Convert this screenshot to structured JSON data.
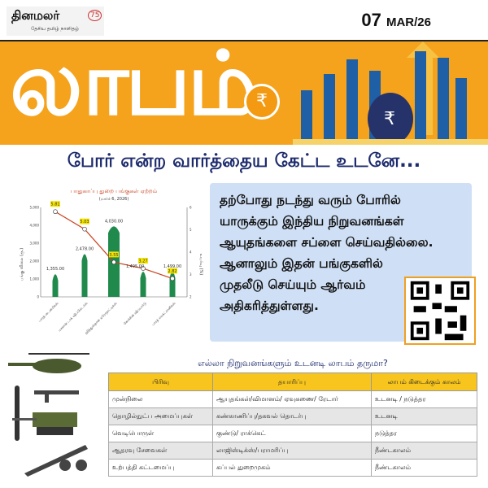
{
  "header": {
    "logo_text": "தினமலர்",
    "logo_tagline": "தேசிய தமிழ் நாளிதழ்",
    "anniversary": "75",
    "date_day": "07",
    "date_rest": "MAR/26"
  },
  "banner": {
    "word": "லாபம்",
    "symbol": "₹"
  },
  "headline": "போர் என்ற வார்த்தைய கேட்ட உடனே...",
  "chart_data": {
    "type": "bar+line",
    "title": "பாதுகாப்பு துறை பங்குகள் ஏற்றம்",
    "subtitle": "(மார்ச் 6, 2026)",
    "ylabel": "பங்கு விலை (ரூ.)",
    "y2label": "உயர்வு (%)",
    "ylim": [
      0,
      5000
    ],
    "y2lim": [
      2,
      6
    ],
    "yticks": [
      "0",
      "1,000",
      "2,000",
      "3,000",
      "4,000",
      "5,000"
    ],
    "y2ticks": [
      "2",
      "3",
      "4",
      "5",
      "6"
    ],
    "categories": [
      "பாரத் டைனமிக்ஸ்",
      "மசகான் டாக் ஷிப்பில்டர்ஸ்",
      "ஹிந்துஸ்தான் ஏரோநாட்டிக்ஸ்",
      "கொச்சின் ஷிப்யார்டு",
      "பாரத் எலக்ட்ரானிக்ஸ்"
    ],
    "bar_values": [
      1355,
      2478,
      4030,
      1495,
      1499
    ],
    "bar_labels": [
      "1,355.00",
      "2,478.00",
      "4,030.00",
      "1,495.00",
      "1,499.00"
    ],
    "line_values": [
      5.81,
      5.03,
      3.55,
      3.27,
      2.82
    ],
    "line_labels": [
      "5.81",
      "5.03",
      "3.55",
      "3.27",
      "2.82"
    ],
    "colors": {
      "bar": "#1f8a4c",
      "line": "#c8401e",
      "label_bg": "#f5e400"
    }
  },
  "info": {
    "lines": [
      "தற்போது நடந்து வரும் போரில்",
      "யாருக்கும் இந்திய நிறுவனங்கள்",
      "ஆயுதங்களை சப்ளை செய்வதில்லை.",
      "ஆனாலும் இதன் பங்குகளில்",
      "முதலீடு செய்யும் ஆர்வம்",
      "அதிகரித்துள்ளது."
    ]
  },
  "table": {
    "title": "எல்லா நிறுவனங்களும் உடனடி லாபம் தருமா?",
    "headers": [
      "பிரிவு",
      "தயாரிப்பு",
      "லாபம் கிடைக்கும் காலம்"
    ],
    "rows": [
      [
        "முன்நிலை",
        "ஆயுதங்கள்/விமானம்/ ஏவுகணை/ ரேடார்",
        "உடனடி / நடுத்தர"
      ],
      [
        "தொழில்நுட்ப அமைப்புகள்",
        "கண்காணிப்பு/தகவல் தொடர்பு",
        "உடனடி"
      ],
      [
        "வெடிபொருள்",
        "குண்டு/ ராக்கெட்",
        "நடுத்தர"
      ],
      [
        "ஆதரவு சேவைகள்",
        "லாஜிஸ்டிக்ஸ்/பராமரிப்பு",
        "நீண்டகாலம்"
      ],
      [
        "உற்பத்தி கட்டமைப்பு",
        "கப்பல் துறைமுகம்",
        "நீண்டகாலம்"
      ]
    ]
  }
}
